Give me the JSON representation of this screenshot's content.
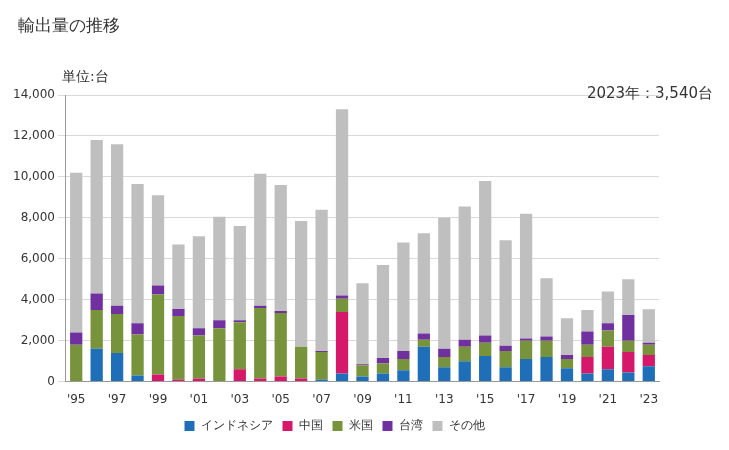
{
  "chart_data": {
    "type": "bar",
    "title": "輸出量の推移",
    "ylabel": "単位:台",
    "annotations": [
      "2023年：3,540台"
    ],
    "stacked": true,
    "grid": true,
    "legend": "bottom",
    "categories": [
      "'95",
      null,
      "'97",
      null,
      "'99",
      null,
      "'01",
      null,
      "'03",
      null,
      "'05",
      null,
      "'07",
      null,
      "'09",
      null,
      "'11",
      null,
      "'13",
      null,
      "'15",
      null,
      "'17",
      null,
      "'19",
      null,
      "'21",
      null,
      "'23"
    ],
    "series": [
      {
        "name": "インドネシア",
        "color": "#1f6fb8",
        "values": [
          0,
          1600,
          1400,
          300,
          0,
          0,
          0,
          0,
          0,
          0,
          0,
          0,
          100,
          400,
          250,
          400,
          550,
          1700,
          700,
          1000,
          1250,
          700,
          1100,
          1200,
          650,
          400,
          600,
          450,
          750
        ]
      },
      {
        "name": "中国",
        "color": "#d6186a",
        "values": [
          0,
          0,
          0,
          0,
          350,
          100,
          150,
          0,
          600,
          150,
          250,
          150,
          0,
          3000,
          0,
          0,
          0,
          0,
          0,
          0,
          0,
          0,
          0,
          0,
          0,
          800,
          1100,
          1000,
          550
        ]
      },
      {
        "name": "米国",
        "color": "#77933c",
        "values": [
          1800,
          1900,
          1900,
          2000,
          3900,
          3100,
          2100,
          2600,
          2300,
          3450,
          3100,
          1550,
          1350,
          650,
          550,
          500,
          550,
          350,
          500,
          700,
          650,
          800,
          900,
          800,
          450,
          600,
          800,
          550,
          500
        ]
      },
      {
        "name": "台湾",
        "color": "#7030a0",
        "values": [
          600,
          800,
          400,
          550,
          450,
          350,
          350,
          400,
          100,
          100,
          100,
          0,
          50,
          150,
          50,
          250,
          400,
          300,
          400,
          350,
          350,
          250,
          100,
          200,
          200,
          650,
          350,
          1250,
          100
        ]
      },
      {
        "name": "その他",
        "color": "#bfbfbf",
        "values": [
          7800,
          7500,
          7900,
          6800,
          4400,
          3150,
          4500,
          5050,
          4600,
          6450,
          6150,
          6150,
          6900,
          9100,
          3950,
          4550,
          5300,
          4900,
          6400,
          6500,
          7550,
          5150,
          6100,
          2850,
          1800,
          1050,
          1550,
          1750,
          1640
        ]
      }
    ],
    "ylim": [
      0,
      14000
    ],
    "yticks": [
      0,
      {
        "value": 2000,
        "label": "2,000"
      },
      {
        "value": 4000,
        "label": "4,000"
      },
      {
        "value": 6000,
        "label": "6,000"
      },
      {
        "value": 8000,
        "label": "8,000"
      },
      {
        "value": 10000,
        "label": "10,000"
      },
      {
        "value": 12000,
        "label": "12,000"
      },
      {
        "value": 14000,
        "label": "14,000"
      }
    ]
  }
}
